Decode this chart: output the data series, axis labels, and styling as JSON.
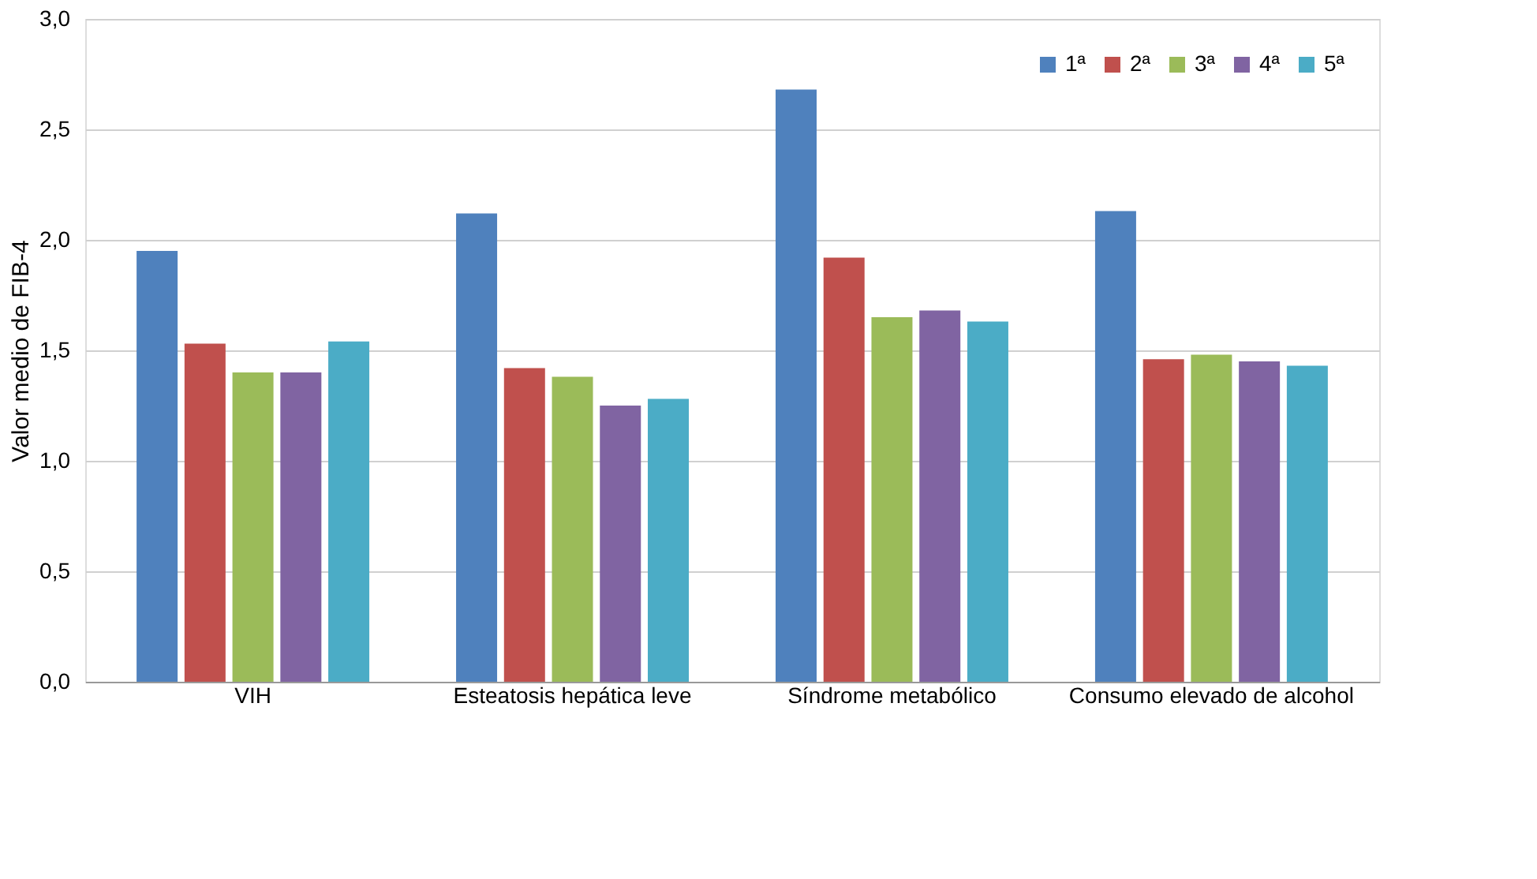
{
  "chart_data": {
    "type": "bar",
    "ylabel": "Valor medio de FIB-4",
    "categories": [
      "VIH",
      "Esteatosis hepática leve",
      "Síndrome metabólico",
      "Consumo elevado de alcohol"
    ],
    "series": [
      {
        "name": "1ª",
        "color": "#4f81bd",
        "values": [
          1.95,
          2.12,
          2.68,
          2.13
        ]
      },
      {
        "name": "2ª",
        "color": "#c0504d",
        "values": [
          1.53,
          1.42,
          1.92,
          1.46
        ]
      },
      {
        "name": "3ª",
        "color": "#9bbb59",
        "values": [
          1.4,
          1.38,
          1.65,
          1.48
        ]
      },
      {
        "name": "4ª",
        "color": "#8064a2",
        "values": [
          1.4,
          1.25,
          1.68,
          1.45
        ]
      },
      {
        "name": "5ª",
        "color": "#4bacc6",
        "values": [
          1.54,
          1.28,
          1.63,
          1.43
        ]
      }
    ],
    "ylim": [
      0,
      3
    ],
    "yticks": [
      {
        "value": 0,
        "label": "0,0"
      },
      {
        "value": 0.5,
        "label": "0,5"
      },
      {
        "value": 1,
        "label": "1,0"
      },
      {
        "value": 1.5,
        "label": "1,5"
      },
      {
        "value": 2,
        "label": "2,0"
      },
      {
        "value": 2.5,
        "label": "2,5"
      },
      {
        "value": 3,
        "label": "3,0"
      }
    ],
    "grid": "y",
    "legend": "top right"
  }
}
